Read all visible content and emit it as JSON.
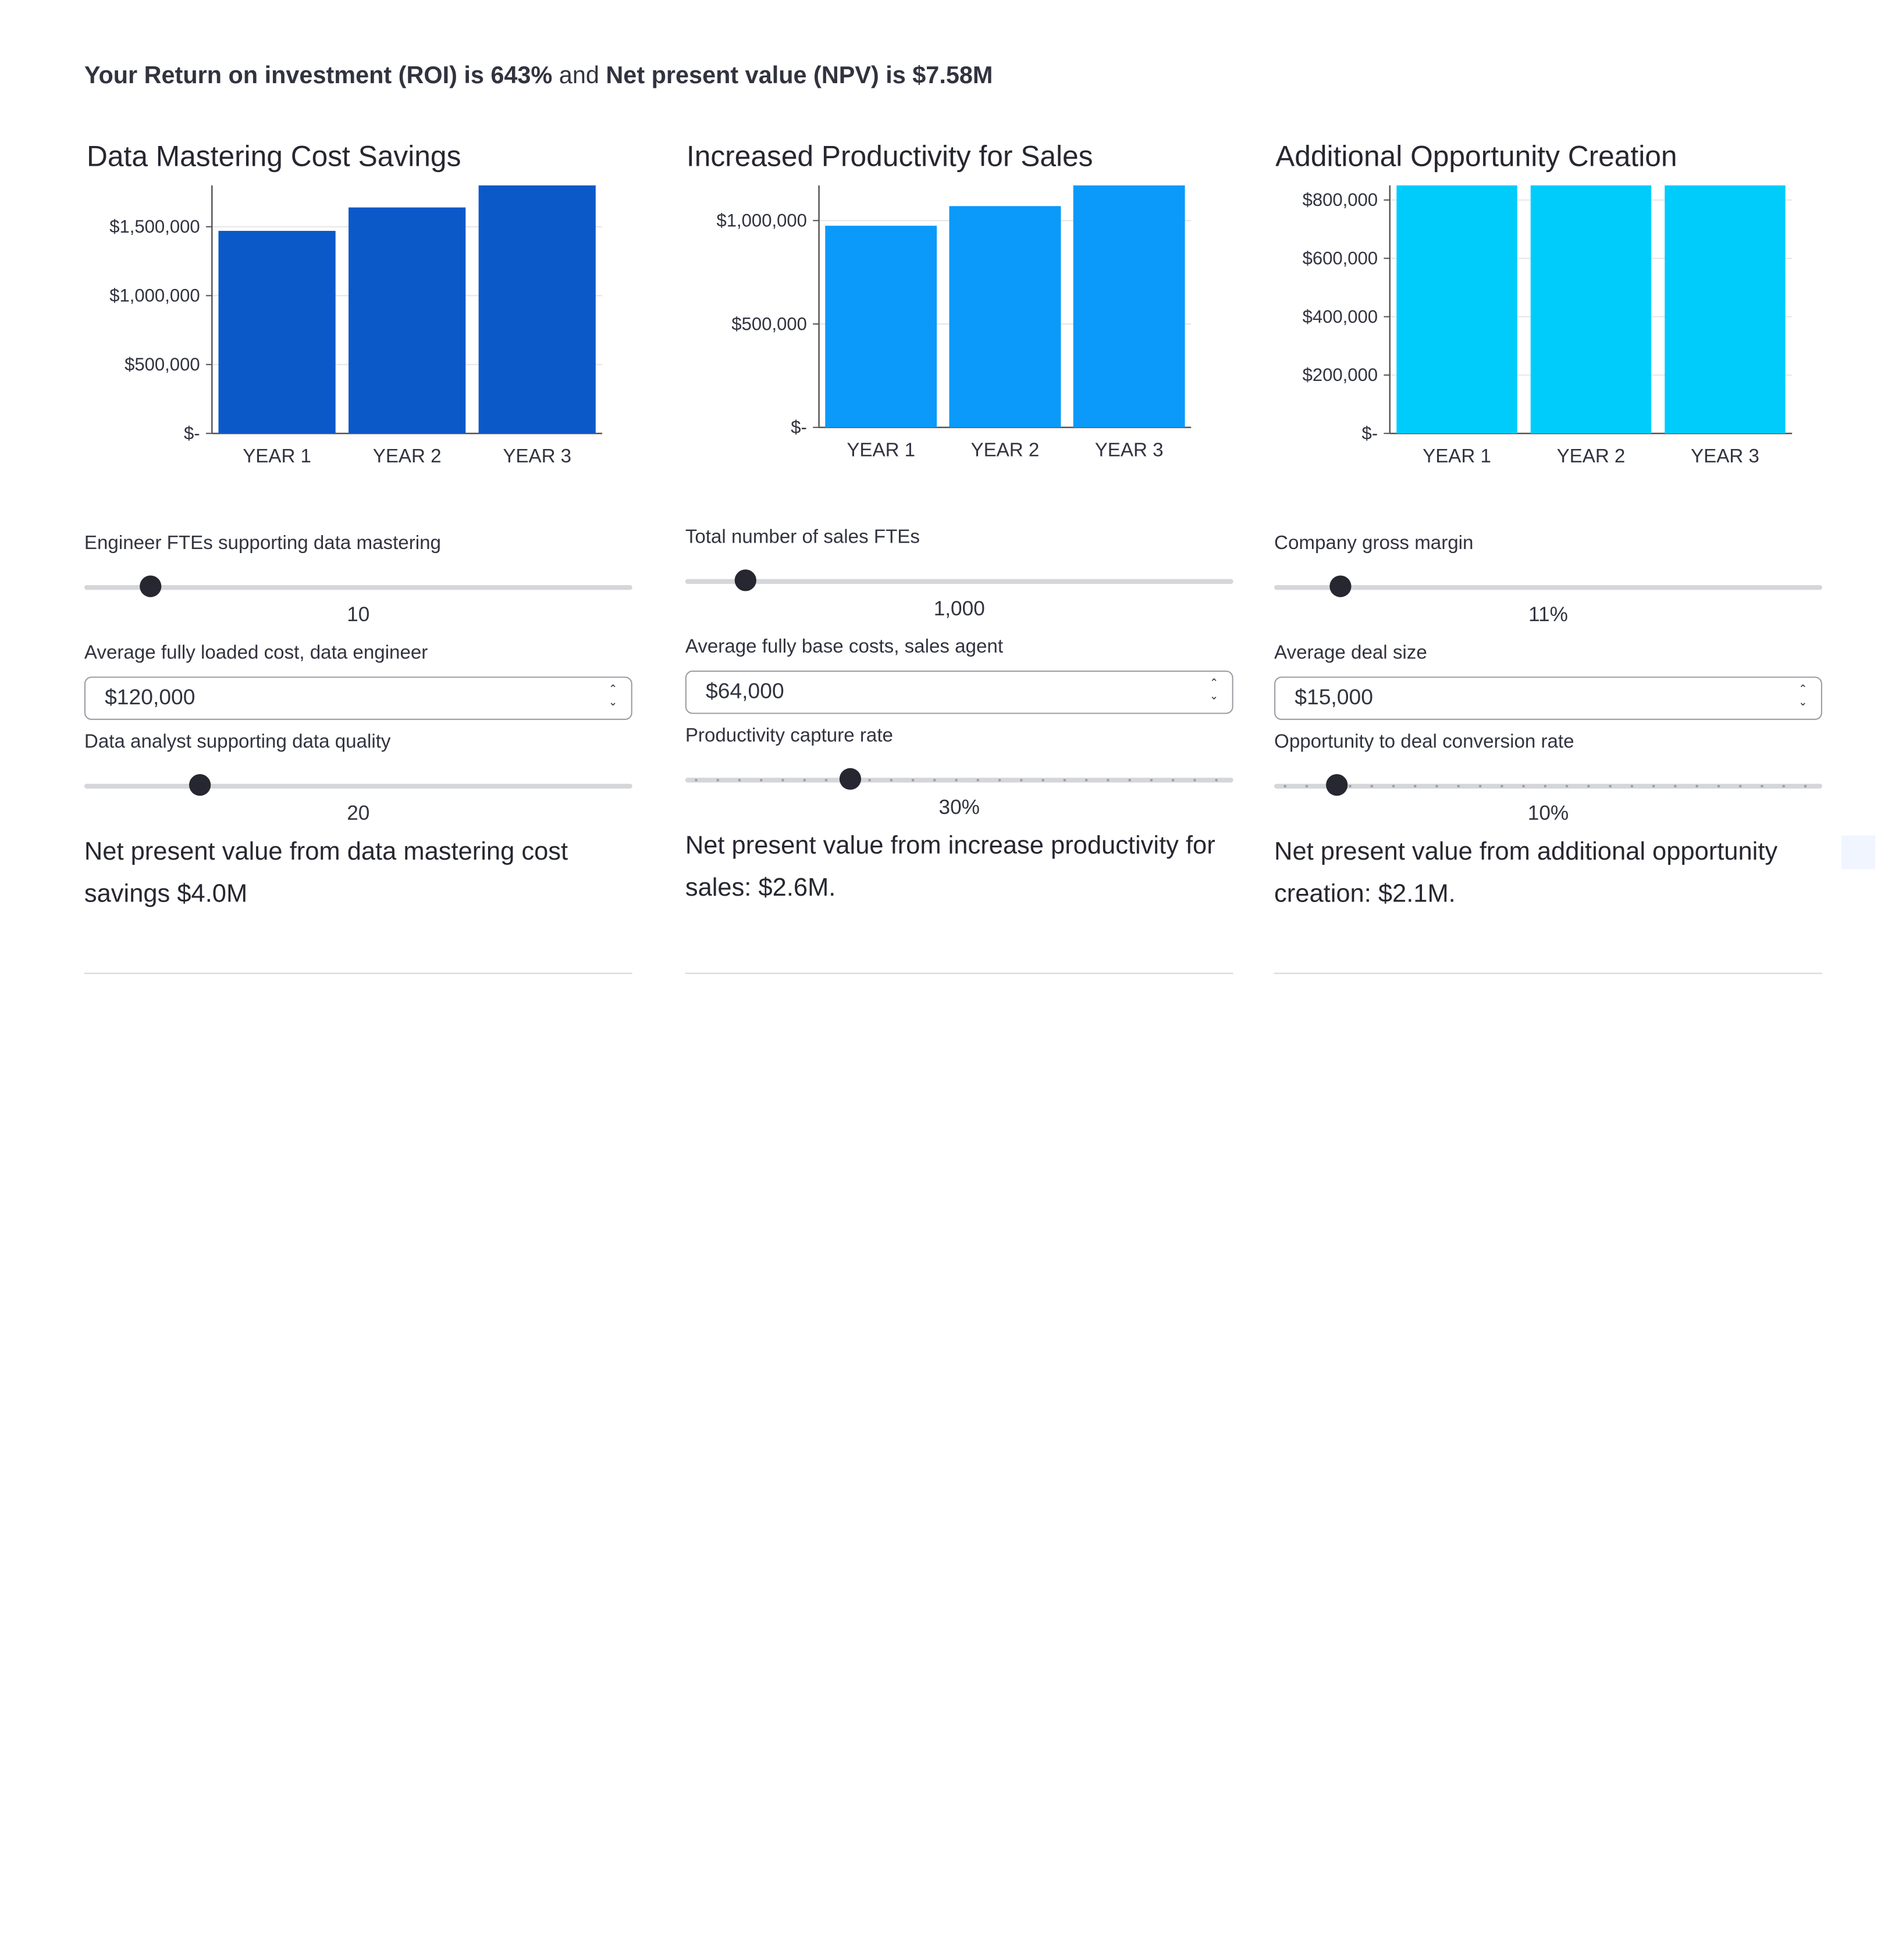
{
  "headline": {
    "roi_label": "Your Return on investment (ROI) is 643%",
    "joiner": "and",
    "npv_label": "Net present value (NPV) is $7.58M"
  },
  "panels": [
    {
      "title": "Data Mastering Cost Savings",
      "slider1": {
        "label": "Engineer FTEs supporting data mastering",
        "value": "10",
        "fraction": 0.12
      },
      "input": {
        "label": "Average fully loaded cost, data engineer",
        "value": "$120,000"
      },
      "slider2": {
        "label": "Data analyst supporting data quality",
        "value": "20",
        "fraction": 0.21
      },
      "npv_text": "Net present value from data mastering cost savings $4.0M"
    },
    {
      "title": "Increased Productivity for Sales",
      "slider1": {
        "label": "Total number of sales FTEs",
        "value": "1,000",
        "fraction": 0.11
      },
      "input": {
        "label": "Average fully base costs, sales agent",
        "value": "$64,000"
      },
      "slider2": {
        "label": "Productivity capture rate",
        "value": "30%",
        "fraction": 0.3
      },
      "npv_text": "Net present value from increase productivity for sales: $2.6M."
    },
    {
      "title": "Additional Opportunity Creation",
      "slider1": {
        "label": "Company gross margin",
        "value": "11%",
        "fraction": 0.12
      },
      "input": {
        "label": "Average deal size",
        "value": "$15,000"
      },
      "slider2": {
        "label": "Opportunity to deal conversion rate",
        "value": "10%",
        "fraction": 0.115
      },
      "npv_text": "Net present value from additional opportunity creation: $2.1M."
    }
  ],
  "chart_data": [
    {
      "type": "bar",
      "title": "Data Mastering Cost Savings",
      "categories": [
        "YEAR 1",
        "YEAR 2",
        "YEAR 3"
      ],
      "values": [
        1470000,
        1640000,
        1800000
      ],
      "yticks": [
        0,
        500000,
        1000000,
        1500000
      ],
      "ytick_labels": [
        "$-",
        "$500,000",
        "$1,000,000",
        "$1,500,000"
      ],
      "ylim": [
        0,
        1800000
      ],
      "color": "#0b59c8",
      "grid": true
    },
    {
      "type": "bar",
      "title": "Increased Productivity for Sales",
      "categories": [
        "YEAR 1",
        "YEAR 2",
        "YEAR 3"
      ],
      "values": [
        975000,
        1070000,
        1170000
      ],
      "yticks": [
        0,
        500000,
        1000000
      ],
      "ytick_labels": [
        "$-",
        "$500,000",
        "$1,000,000"
      ],
      "ylim": [
        0,
        1170000
      ],
      "color": "#0b9af9",
      "grid": true
    },
    {
      "type": "bar",
      "title": "Additional Opportunity Creation",
      "categories": [
        "YEAR 1",
        "YEAR 2",
        "YEAR 3"
      ],
      "values": [
        850000,
        850000,
        850000
      ],
      "yticks": [
        0,
        200000,
        400000,
        600000,
        800000
      ],
      "ytick_labels": [
        "$-",
        "$200,000",
        "$400,000",
        "$600,000",
        "$800,000"
      ],
      "ylim": [
        0,
        850000
      ],
      "color": "#00ccfb",
      "grid": true
    }
  ]
}
